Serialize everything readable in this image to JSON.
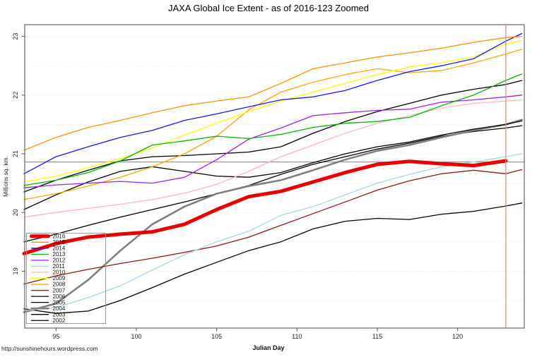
{
  "page": {
    "title": "JAXA Global Ice Extent - as of 2016-123 Zoomed",
    "footer_url": "http://sunshinehours.wordpress.com"
  },
  "chart_data": {
    "type": "line",
    "title": "JAXA Global Ice Extent - as of 2016-123 Zoomed",
    "xlabel": "Julian Day",
    "ylabel": "Millions sq. km.",
    "xlim": [
      93.05,
      124.15
    ],
    "ylim": [
      18.03,
      23.2
    ],
    "x_ticks": [
      95,
      100,
      105,
      110,
      115,
      120
    ],
    "y_ticks": [
      19,
      20,
      21,
      22,
      23
    ],
    "grid": {
      "horizontal_step": 0.5,
      "style": "dotted",
      "color": "#ece4c0"
    },
    "legend_position": "bottom-left",
    "reference_lines": {
      "horizontal_y": 20.86,
      "horizontal_color": "#808080",
      "vertical_x": 123,
      "vertical_color": "#f08080"
    },
    "series": [
      {
        "name": "2016",
        "color": "#e60000",
        "lw": 5,
        "points": [
          [
            93,
            19.3
          ],
          [
            95,
            19.47
          ],
          [
            97,
            19.58
          ],
          [
            99,
            19.63
          ],
          [
            101,
            19.67
          ],
          [
            103,
            19.8
          ],
          [
            105,
            20.05
          ],
          [
            107,
            20.27
          ],
          [
            109,
            20.36
          ],
          [
            111,
            20.52
          ],
          [
            113,
            20.68
          ],
          [
            115,
            20.82
          ],
          [
            117,
            20.87
          ],
          [
            119,
            20.83
          ],
          [
            121,
            20.8
          ],
          [
            123,
            20.88
          ]
        ]
      },
      {
        "name": "2015",
        "color": "#ff9100",
        "lw": 1.3,
        "points": [
          [
            93,
            21.06
          ],
          [
            95,
            21.28
          ],
          [
            97,
            21.45
          ],
          [
            99,
            21.57
          ],
          [
            101,
            21.7
          ],
          [
            103,
            21.82
          ],
          [
            105,
            21.9
          ],
          [
            107,
            21.97
          ],
          [
            109,
            22.2
          ],
          [
            111,
            22.45
          ],
          [
            113,
            22.55
          ],
          [
            115,
            22.65
          ],
          [
            117,
            22.72
          ],
          [
            119,
            22.8
          ],
          [
            121,
            22.9
          ],
          [
            123,
            22.98
          ],
          [
            124,
            23.0
          ]
        ]
      },
      {
        "name": "2014",
        "color": "#1414ff",
        "lw": 1.3,
        "points": [
          [
            93,
            20.66
          ],
          [
            95,
            20.95
          ],
          [
            97,
            21.12
          ],
          [
            99,
            21.28
          ],
          [
            101,
            21.4
          ],
          [
            103,
            21.57
          ],
          [
            105,
            21.68
          ],
          [
            107,
            21.8
          ],
          [
            109,
            21.92
          ],
          [
            111,
            21.97
          ],
          [
            113,
            22.08
          ],
          [
            115,
            22.25
          ],
          [
            117,
            22.4
          ],
          [
            119,
            22.5
          ],
          [
            121,
            22.62
          ],
          [
            123,
            22.92
          ],
          [
            124,
            23.05
          ]
        ]
      },
      {
        "name": "2013",
        "color": "#00b400",
        "lw": 1.3,
        "points": [
          [
            93,
            20.46
          ],
          [
            95,
            20.55
          ],
          [
            97,
            20.68
          ],
          [
            99,
            20.88
          ],
          [
            101,
            21.15
          ],
          [
            103,
            21.22
          ],
          [
            105,
            21.3
          ],
          [
            107,
            21.26
          ],
          [
            109,
            21.33
          ],
          [
            111,
            21.45
          ],
          [
            113,
            21.52
          ],
          [
            115,
            21.55
          ],
          [
            117,
            21.62
          ],
          [
            119,
            21.82
          ],
          [
            121,
            22.0
          ],
          [
            123,
            22.25
          ],
          [
            124,
            22.36
          ]
        ]
      },
      {
        "name": "2012",
        "color": "#a020f0",
        "lw": 1.3,
        "points": [
          [
            93,
            20.42
          ],
          [
            95,
            20.47
          ],
          [
            97,
            20.5
          ],
          [
            99,
            20.53
          ],
          [
            101,
            20.5
          ],
          [
            103,
            20.6
          ],
          [
            105,
            20.9
          ],
          [
            107,
            21.25
          ],
          [
            109,
            21.44
          ],
          [
            111,
            21.65
          ],
          [
            113,
            21.7
          ],
          [
            115,
            21.74
          ],
          [
            117,
            21.76
          ],
          [
            119,
            21.88
          ],
          [
            121,
            21.92
          ],
          [
            123,
            21.97
          ],
          [
            124,
            22.0
          ]
        ]
      },
      {
        "name": "2011",
        "color": "#a6d8ea",
        "lw": 1.3,
        "points": [
          [
            93,
            18.33
          ],
          [
            95,
            18.38
          ],
          [
            97,
            18.55
          ],
          [
            99,
            18.75
          ],
          [
            101,
            19.02
          ],
          [
            103,
            19.28
          ],
          [
            105,
            19.5
          ],
          [
            107,
            19.68
          ],
          [
            109,
            19.95
          ],
          [
            111,
            20.1
          ],
          [
            113,
            20.3
          ],
          [
            115,
            20.5
          ],
          [
            117,
            20.65
          ],
          [
            119,
            20.78
          ],
          [
            121,
            20.86
          ],
          [
            123,
            20.95
          ],
          [
            124,
            21.0
          ]
        ]
      },
      {
        "name": "2010",
        "color": "#ffb6c1",
        "lw": 1.3,
        "points": [
          [
            93,
            19.92
          ],
          [
            95,
            20.0
          ],
          [
            97,
            20.07
          ],
          [
            99,
            20.14
          ],
          [
            101,
            20.22
          ],
          [
            103,
            20.33
          ],
          [
            105,
            20.48
          ],
          [
            107,
            20.7
          ],
          [
            109,
            20.95
          ],
          [
            111,
            21.15
          ],
          [
            113,
            21.35
          ],
          [
            115,
            21.52
          ],
          [
            117,
            21.65
          ],
          [
            119,
            21.78
          ],
          [
            121,
            21.86
          ],
          [
            123,
            21.9
          ],
          [
            124,
            21.92
          ]
        ]
      },
      {
        "name": "2009",
        "color": "#ffff00",
        "lw": 1.3,
        "points": [
          [
            93,
            20.52
          ],
          [
            95,
            20.62
          ],
          [
            97,
            20.76
          ],
          [
            99,
            20.92
          ],
          [
            101,
            21.1
          ],
          [
            103,
            21.32
          ],
          [
            105,
            21.52
          ],
          [
            107,
            21.72
          ],
          [
            109,
            21.9
          ],
          [
            111,
            22.05
          ],
          [
            113,
            22.2
          ],
          [
            115,
            22.35
          ],
          [
            117,
            22.48
          ],
          [
            119,
            22.55
          ],
          [
            121,
            22.65
          ],
          [
            123,
            22.87
          ],
          [
            124,
            22.93
          ]
        ]
      },
      {
        "name": "2008",
        "color": "#ffa500",
        "lw": 1.3,
        "points": [
          [
            93,
            20.22
          ],
          [
            95,
            20.32
          ],
          [
            97,
            20.45
          ],
          [
            99,
            20.6
          ],
          [
            101,
            20.78
          ],
          [
            103,
            21.0
          ],
          [
            105,
            21.3
          ],
          [
            107,
            21.75
          ],
          [
            109,
            22.05
          ],
          [
            111,
            22.22
          ],
          [
            113,
            22.35
          ],
          [
            115,
            22.45
          ],
          [
            117,
            22.38
          ],
          [
            119,
            22.42
          ],
          [
            121,
            22.55
          ],
          [
            123,
            22.7
          ],
          [
            124,
            22.78
          ]
        ]
      },
      {
        "name": "2007",
        "color": "#8b1a1a",
        "lw": 1.3,
        "points": [
          [
            93,
            18.78
          ],
          [
            95,
            18.92
          ],
          [
            97,
            19.03
          ],
          [
            99,
            19.13
          ],
          [
            101,
            19.22
          ],
          [
            103,
            19.32
          ],
          [
            105,
            19.43
          ],
          [
            107,
            19.58
          ],
          [
            109,
            19.78
          ],
          [
            111,
            19.98
          ],
          [
            113,
            20.18
          ],
          [
            115,
            20.38
          ],
          [
            117,
            20.54
          ],
          [
            119,
            20.66
          ],
          [
            121,
            20.72
          ],
          [
            123,
            20.66
          ],
          [
            124,
            20.73
          ]
        ]
      },
      {
        "name": "2006",
        "color": "#000000",
        "lw": 1.3,
        "points": [
          [
            93,
            20.35
          ],
          [
            95,
            20.55
          ],
          [
            97,
            20.72
          ],
          [
            99,
            20.88
          ],
          [
            101,
            20.95
          ],
          [
            103,
            20.97
          ],
          [
            105,
            21.0
          ],
          [
            107,
            21.03
          ],
          [
            109,
            21.12
          ],
          [
            111,
            21.35
          ],
          [
            113,
            21.55
          ],
          [
            115,
            21.72
          ],
          [
            117,
            21.86
          ],
          [
            119,
            22.0
          ],
          [
            121,
            22.1
          ],
          [
            123,
            22.18
          ],
          [
            124,
            22.25
          ]
        ]
      },
      {
        "name": "2005",
        "color": "#000000",
        "lw": 1.3,
        "points": [
          [
            93,
            20.05
          ],
          [
            95,
            20.3
          ],
          [
            97,
            20.52
          ],
          [
            99,
            20.7
          ],
          [
            101,
            20.78
          ],
          [
            103,
            20.7
          ],
          [
            105,
            20.62
          ],
          [
            107,
            20.6
          ],
          [
            109,
            20.68
          ],
          [
            111,
            20.85
          ],
          [
            113,
            21.0
          ],
          [
            115,
            21.12
          ],
          [
            117,
            21.2
          ],
          [
            119,
            21.32
          ],
          [
            121,
            21.42
          ],
          [
            123,
            21.5
          ],
          [
            124,
            21.56
          ]
        ]
      },
      {
        "name": "2004",
        "color": "#808080",
        "lw": 2.6,
        "points": [
          [
            93,
            18.3
          ],
          [
            95,
            18.45
          ],
          [
            97,
            18.85
          ],
          [
            99,
            19.35
          ],
          [
            101,
            19.8
          ],
          [
            103,
            20.1
          ],
          [
            105,
            20.32
          ],
          [
            107,
            20.45
          ],
          [
            109,
            20.55
          ],
          [
            111,
            20.72
          ],
          [
            113,
            20.9
          ],
          [
            115,
            21.05
          ],
          [
            117,
            21.15
          ],
          [
            119,
            21.28
          ],
          [
            121,
            21.4
          ],
          [
            123,
            21.5
          ],
          [
            124,
            21.58
          ]
        ]
      },
      {
        "name": "2003",
        "color": "#000000",
        "lw": 1.3,
        "points": [
          [
            93,
            19.5
          ],
          [
            95,
            19.63
          ],
          [
            97,
            19.78
          ],
          [
            99,
            19.92
          ],
          [
            101,
            20.05
          ],
          [
            103,
            20.18
          ],
          [
            105,
            20.32
          ],
          [
            107,
            20.46
          ],
          [
            109,
            20.65
          ],
          [
            111,
            20.82
          ],
          [
            113,
            20.95
          ],
          [
            115,
            21.08
          ],
          [
            117,
            21.18
          ],
          [
            119,
            21.3
          ],
          [
            121,
            21.38
          ],
          [
            123,
            21.44
          ],
          [
            124,
            21.48
          ]
        ]
      },
      {
        "name": "2002",
        "color": "#000000",
        "lw": 1.3,
        "points": [
          [
            93,
            18.36
          ],
          [
            95,
            18.28
          ],
          [
            97,
            18.32
          ],
          [
            99,
            18.5
          ],
          [
            101,
            18.72
          ],
          [
            103,
            18.95
          ],
          [
            105,
            19.15
          ],
          [
            107,
            19.35
          ],
          [
            109,
            19.5
          ],
          [
            111,
            19.72
          ],
          [
            113,
            19.85
          ],
          [
            115,
            19.9
          ],
          [
            117,
            19.88
          ],
          [
            119,
            19.97
          ],
          [
            121,
            20.02
          ],
          [
            123,
            20.11
          ],
          [
            124,
            20.16
          ]
        ]
      }
    ]
  }
}
